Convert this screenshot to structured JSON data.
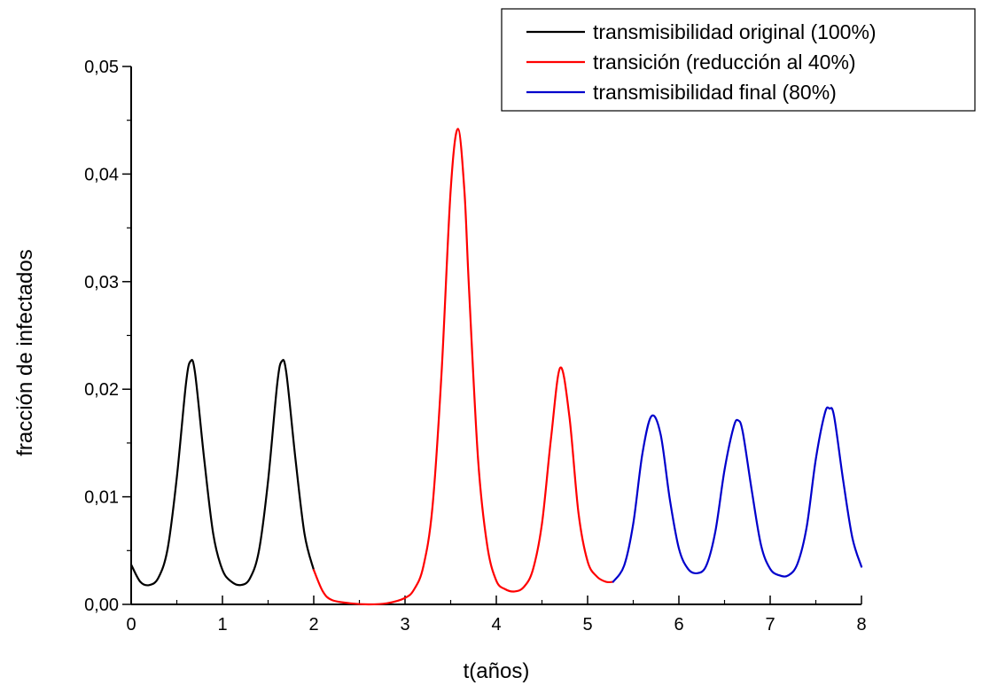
{
  "chart_data": {
    "type": "line",
    "xlabel": "t(años)",
    "ylabel": "fracción de infectados",
    "xlim": [
      0,
      8
    ],
    "ylim": [
      0,
      0.05
    ],
    "x_ticks": [
      "0",
      "1",
      "2",
      "3",
      "4",
      "5",
      "6",
      "7",
      "8"
    ],
    "y_ticks": [
      "0,00",
      "0,01",
      "0,02",
      "0,03",
      "0,04",
      "0,05"
    ],
    "grid": false,
    "legend_position": "top-right",
    "series": [
      {
        "name": "transmisibilidad original (100%)",
        "color": "#000000",
        "x": [
          0.0,
          0.1,
          0.2,
          0.3,
          0.4,
          0.5,
          0.6,
          0.65,
          0.7,
          0.8,
          0.9,
          1.0,
          1.1,
          1.2,
          1.3,
          1.4,
          1.5,
          1.6,
          1.65,
          1.7,
          1.8,
          1.9,
          2.0
        ],
        "y": [
          0.0037,
          0.0021,
          0.0018,
          0.0025,
          0.0052,
          0.0118,
          0.0205,
          0.0226,
          0.0215,
          0.0135,
          0.0065,
          0.0032,
          0.0021,
          0.0018,
          0.0024,
          0.005,
          0.0115,
          0.0205,
          0.0226,
          0.0215,
          0.0135,
          0.0065,
          0.0032
        ]
      },
      {
        "name": "transición (reducción al 40%)",
        "color": "#ff0000",
        "x": [
          2.0,
          2.1,
          2.2,
          2.4,
          2.6,
          2.8,
          3.0,
          3.1,
          3.2,
          3.3,
          3.4,
          3.5,
          3.58,
          3.65,
          3.7,
          3.8,
          3.9,
          4.0,
          4.1,
          4.2,
          4.3,
          4.4,
          4.5,
          4.6,
          4.7,
          4.8,
          4.9,
          5.0,
          5.1,
          5.2,
          5.28
        ],
        "y": [
          0.0032,
          0.0012,
          0.0004,
          0.0001,
          0.0,
          0.0001,
          0.0006,
          0.0014,
          0.0035,
          0.009,
          0.0215,
          0.0385,
          0.0442,
          0.0385,
          0.0295,
          0.0135,
          0.0055,
          0.0022,
          0.0014,
          0.0012,
          0.0016,
          0.0032,
          0.0075,
          0.0155,
          0.022,
          0.0175,
          0.0085,
          0.004,
          0.0026,
          0.0021,
          0.0021
        ]
      },
      {
        "name": "transmisibilidad final (80%)",
        "color": "#0000cc",
        "x": [
          5.28,
          5.4,
          5.5,
          5.6,
          5.7,
          5.8,
          5.9,
          6.0,
          6.1,
          6.2,
          6.3,
          6.4,
          6.5,
          6.6,
          6.65,
          6.7,
          6.8,
          6.9,
          7.0,
          7.1,
          7.2,
          7.3,
          7.4,
          7.5,
          7.6,
          7.65,
          7.7,
          7.8,
          7.9,
          8.0
        ],
        "y": [
          0.0021,
          0.0036,
          0.0075,
          0.014,
          0.0175,
          0.0158,
          0.0098,
          0.0052,
          0.0033,
          0.0029,
          0.0036,
          0.0068,
          0.0125,
          0.0165,
          0.0171,
          0.016,
          0.0105,
          0.0055,
          0.0033,
          0.0027,
          0.0027,
          0.0038,
          0.0072,
          0.0135,
          0.0178,
          0.0182,
          0.0175,
          0.0115,
          0.0062,
          0.0035
        ]
      }
    ]
  }
}
